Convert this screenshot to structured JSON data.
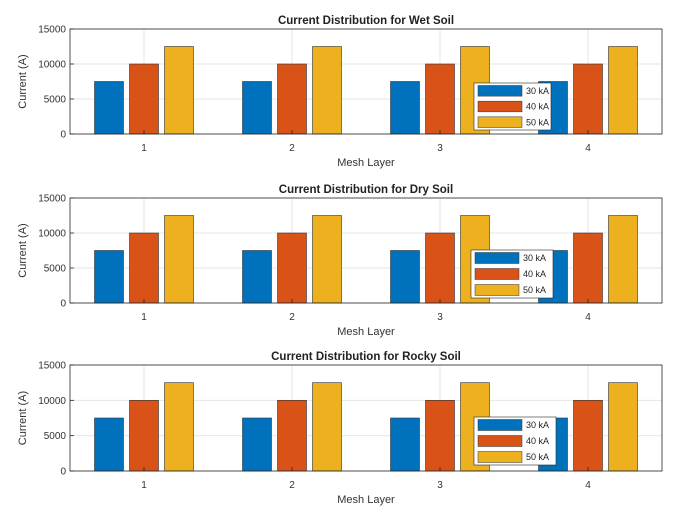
{
  "colors": {
    "30 kA": "#0072BD",
    "40 kA": "#D95319",
    "50 kA": "#EDB120"
  },
  "chart_data": [
    {
      "type": "bar",
      "title": "Current Distribution for Wet Soil",
      "xlabel": "Mesh Layer",
      "ylabel": "Current (A)",
      "categories": [
        "1",
        "2",
        "3",
        "4"
      ],
      "ylim": [
        0,
        15000
      ],
      "yticks": [
        0,
        5000,
        10000,
        15000
      ],
      "grid": true,
      "legend_position": "inside center-right",
      "series": [
        {
          "name": "30 kA",
          "values": [
            7500,
            7500,
            7500,
            7500
          ]
        },
        {
          "name": "40 kA",
          "values": [
            10000,
            10000,
            10000,
            10000
          ]
        },
        {
          "name": "50 kA",
          "values": [
            12500,
            12500,
            12500,
            12500
          ]
        }
      ]
    },
    {
      "type": "bar",
      "title": "Current Distribution for Dry Soil",
      "xlabel": "Mesh Layer",
      "ylabel": "Current (A)",
      "categories": [
        "1",
        "2",
        "3",
        "4"
      ],
      "ylim": [
        0,
        15000
      ],
      "yticks": [
        0,
        5000,
        10000,
        15000
      ],
      "grid": true,
      "legend_position": "inside center-right",
      "series": [
        {
          "name": "30 kA",
          "values": [
            7500,
            7500,
            7500,
            7500
          ]
        },
        {
          "name": "40 kA",
          "values": [
            10000,
            10000,
            10000,
            10000
          ]
        },
        {
          "name": "50 kA",
          "values": [
            12500,
            12500,
            12500,
            12500
          ]
        }
      ]
    },
    {
      "type": "bar",
      "title": "Current Distribution for Rocky Soil",
      "xlabel": "Mesh Layer",
      "ylabel": "Current (A)",
      "categories": [
        "1",
        "2",
        "3",
        "4"
      ],
      "ylim": [
        0,
        15000
      ],
      "yticks": [
        0,
        5000,
        10000,
        15000
      ],
      "grid": true,
      "legend_position": "inside center-right",
      "series": [
        {
          "name": "30 kA",
          "values": [
            7500,
            7500,
            7500,
            7500
          ]
        },
        {
          "name": "40 kA",
          "values": [
            10000,
            10000,
            10000,
            10000
          ]
        },
        {
          "name": "50 kA",
          "values": [
            12500,
            12500,
            12500,
            12500
          ]
        }
      ]
    }
  ]
}
